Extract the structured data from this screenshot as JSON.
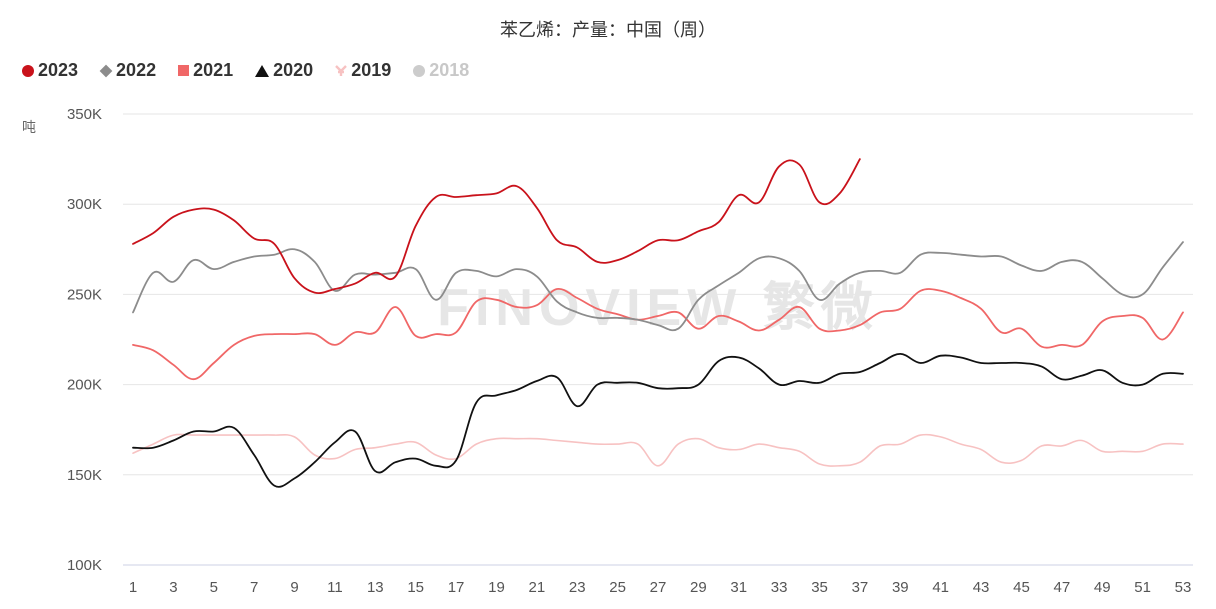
{
  "chart_data": {
    "type": "line",
    "title": "苯乙烯：产量：中国（周）",
    "ylabel": "吨",
    "watermark": "FINOVIEW 繁微",
    "ylim": [
      100000,
      350000
    ],
    "yticks": [
      100000,
      150000,
      200000,
      250000,
      300000,
      350000
    ],
    "ytick_labels": [
      "100K",
      "150K",
      "200K",
      "250K",
      "300K",
      "350K"
    ],
    "xlim": [
      1,
      53
    ],
    "xticks": [
      1,
      3,
      5,
      7,
      9,
      11,
      13,
      15,
      17,
      19,
      21,
      23,
      25,
      27,
      29,
      31,
      33,
      35,
      37,
      39,
      41,
      43,
      45,
      47,
      49,
      51,
      53
    ],
    "xtick_labels": [
      "1",
      "3",
      "5",
      "7",
      "9",
      "11",
      "13",
      "15",
      "17",
      "19",
      "21",
      "23",
      "25",
      "27",
      "29",
      "31",
      "33",
      "35",
      "37",
      "39",
      "41",
      "43",
      "45",
      "47",
      "49",
      "51",
      "53"
    ],
    "series": [
      {
        "name": "2018",
        "color": "#cccccc",
        "marker": "circle",
        "visible": false,
        "values": []
      },
      {
        "name": "2019",
        "color": "#f7c2c2",
        "marker": "ytri",
        "visible": true,
        "values": [
          162000,
          167000,
          172000,
          172000,
          172000,
          172000,
          172000,
          172000,
          171000,
          161000,
          159000,
          164000,
          165000,
          167000,
          168000,
          161000,
          159000,
          167000,
          170000,
          170000,
          170000,
          169000,
          168000,
          167000,
          167000,
          167000,
          155000,
          167000,
          170000,
          165000,
          164000,
          167000,
          165000,
          163000,
          156000,
          155000,
          157000,
          166000,
          167000,
          172000,
          171000,
          167000,
          164000,
          157000,
          158000,
          166000,
          166000,
          169000,
          163000,
          163000,
          163000,
          167000,
          167000
        ]
      },
      {
        "name": "2020",
        "color": "#111111",
        "marker": "triangle",
        "visible": true,
        "values": [
          165000,
          165000,
          169000,
          174000,
          174000,
          176000,
          161000,
          144000,
          148000,
          157000,
          168000,
          174000,
          152000,
          157000,
          159000,
          155000,
          158000,
          190000,
          194000,
          197000,
          202000,
          204000,
          188000,
          200000,
          201000,
          201000,
          198000,
          198000,
          200000,
          213000,
          215000,
          209000,
          200000,
          202000,
          201000,
          206000,
          207000,
          212000,
          217000,
          212000,
          216000,
          215000,
          212000,
          212000,
          212000,
          210000,
          203000,
          205000,
          208000,
          201000,
          200000,
          206000,
          206000
        ]
      },
      {
        "name": "2021",
        "color": "#f06767",
        "marker": "square",
        "visible": true,
        "values": [
          222000,
          219000,
          211000,
          203000,
          212000,
          222000,
          227000,
          228000,
          228000,
          228000,
          222000,
          229000,
          229000,
          243000,
          227000,
          228000,
          229000,
          246000,
          247000,
          243000,
          244000,
          253000,
          248000,
          242000,
          239000,
          236000,
          238000,
          240000,
          231000,
          238000,
          235000,
          230000,
          236000,
          243000,
          231000,
          230000,
          233000,
          240000,
          242000,
          252000,
          252000,
          248000,
          242000,
          229000,
          231000,
          221000,
          222000,
          222000,
          235000,
          238000,
          237000,
          225000,
          240000
        ]
      },
      {
        "name": "2022",
        "color": "#8c8c8c",
        "marker": "diamond",
        "visible": true,
        "values": [
          240000,
          262000,
          257000,
          269000,
          264000,
          268000,
          271000,
          272000,
          275000,
          268000,
          252000,
          261000,
          261000,
          262000,
          264000,
          247000,
          262000,
          263000,
          260000,
          264000,
          260000,
          246000,
          240000,
          237000,
          237000,
          236000,
          233000,
          231000,
          247000,
          255000,
          262000,
          270000,
          270000,
          263000,
          247000,
          256000,
          262000,
          263000,
          262000,
          272000,
          273000,
          272000,
          271000,
          271000,
          266000,
          263000,
          268000,
          268000,
          259000,
          250000,
          250000,
          265000,
          279000
        ]
      },
      {
        "name": "2023",
        "color": "#c9121b",
        "marker": "circle",
        "visible": true,
        "values": [
          278000,
          284000,
          293000,
          297000,
          297000,
          291000,
          281000,
          278000,
          259000,
          251000,
          253000,
          256000,
          262000,
          260000,
          288000,
          304000,
          304000,
          305000,
          306000,
          310000,
          298000,
          280000,
          276000,
          268000,
          269000,
          274000,
          280000,
          280000,
          285000,
          290000,
          305000,
          301000,
          321000,
          322000,
          301000,
          306000,
          325000
        ]
      }
    ]
  }
}
